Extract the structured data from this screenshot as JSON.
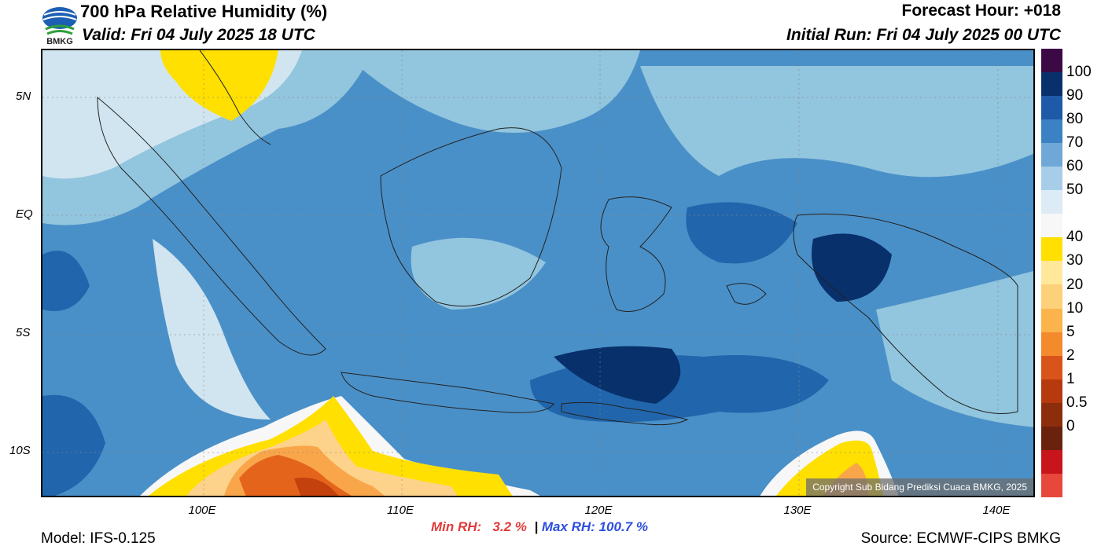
{
  "header": {
    "title": "700 hPa Relative Humidity (%)",
    "valid": "Valid: Fri 04 July 2025 18 UTC",
    "forecast_hour": "Forecast Hour: +018",
    "initial_run": "Initial Run: Fri 04 July 2025 00 UTC",
    "logo_text": "BMKG"
  },
  "map": {
    "lat_labels": [
      "5N",
      "EQ",
      "5S",
      "10S"
    ],
    "lon_labels": [
      "100E",
      "110E",
      "120E",
      "130E",
      "140E"
    ],
    "copyright": "Copyright Sub Bidang Prediksi Cuaca BMKG, 2025",
    "colors": {
      "deep_blue": "#08306b",
      "dark_blue": "#2166ac",
      "mid_blue": "#4a90c8",
      "light_blue": "#92c5de",
      "pale_blue": "#d1e5f0",
      "white": "#f7f7f7",
      "yellow": "#ffe000",
      "light_orange": "#fdd28a",
      "orange": "#f9a64a",
      "dark_orange": "#e5641c",
      "brown": "#c2410c"
    }
  },
  "colorbar": {
    "labels": [
      "100",
      "90",
      "80",
      "70",
      "60",
      "50",
      "40",
      "30",
      "20",
      "10",
      "5",
      "2",
      "1",
      "0.5",
      "0"
    ],
    "colors": [
      "#3b0a45",
      "#08306b",
      "#1e5aa8",
      "#3a82c4",
      "#6fa8d6",
      "#a8cde8",
      "#dcebf5",
      "#f7f7f7",
      "#ffe000",
      "#ffe89a",
      "#fdd07a",
      "#fbb34c",
      "#f38b2c",
      "#d9541a",
      "#b63a0e",
      "#8c2d0b",
      "#6a220f",
      "#c8151b",
      "#e8473c"
    ]
  },
  "footer": {
    "min_label": "Min RH:",
    "min_value": "3.2 %",
    "separator": "|",
    "max_label": "Max RH:",
    "max_value": "100.7 %",
    "model": "Model: IFS-0.125",
    "source": "Source: ECMWF-CIPS BMKG"
  }
}
